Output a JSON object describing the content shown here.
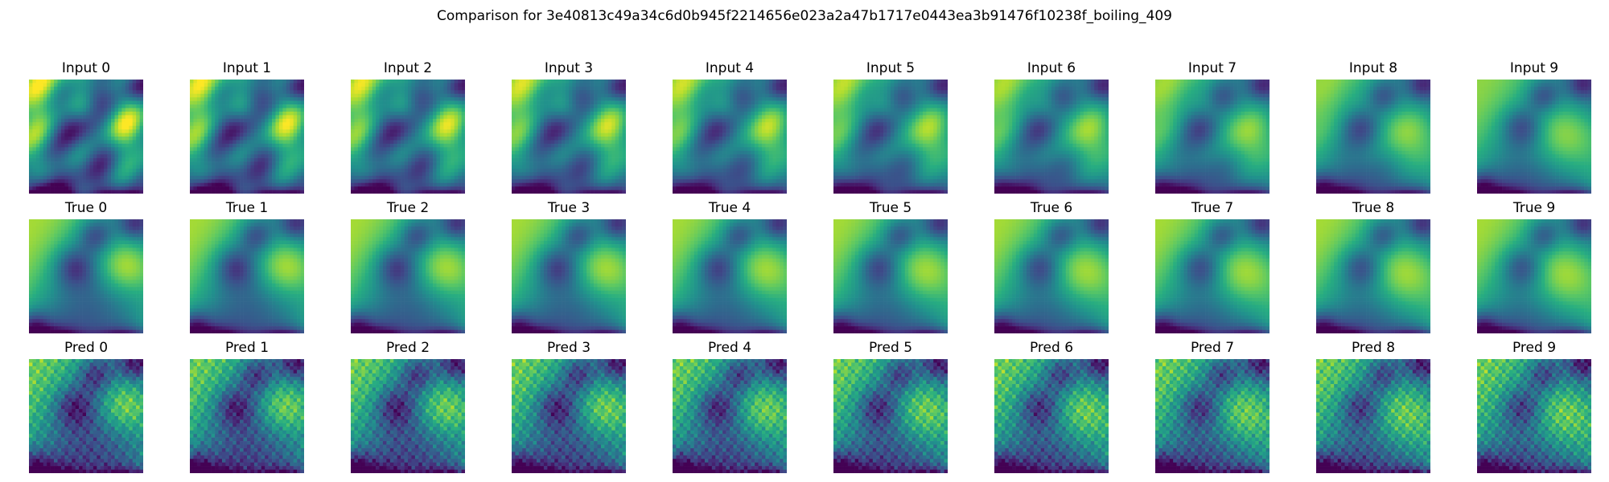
{
  "figure": {
    "title": "Comparison for 3e40813c49a34c6d0b945f2214656e023a2a47b1717e0443ea3b91476f10238f_boiling_409",
    "colormap": "viridis",
    "axes_visible": false
  },
  "chart_data": {
    "type": "heatmap",
    "grid": "off",
    "colormap": "viridis",
    "rows": [
      {
        "name": "Input",
        "titles": [
          "Input 0",
          "Input 1",
          "Input 2",
          "Input 3",
          "Input 4",
          "Input 5",
          "Input 6",
          "Input 7",
          "Input 8",
          "Input 9"
        ]
      },
      {
        "name": "True",
        "titles": [
          "True 0",
          "True 1",
          "True 2",
          "True 3",
          "True 4",
          "True 5",
          "True 6",
          "True 7",
          "True 8",
          "True 9"
        ]
      },
      {
        "name": "Pred",
        "titles": [
          "Pred 0",
          "Pred 1",
          "Pred 2",
          "Pred 3",
          "Pred 4",
          "Pred 5",
          "Pred 6",
          "Pred 7",
          "Pred 8",
          "Pred 9"
        ]
      }
    ]
  }
}
